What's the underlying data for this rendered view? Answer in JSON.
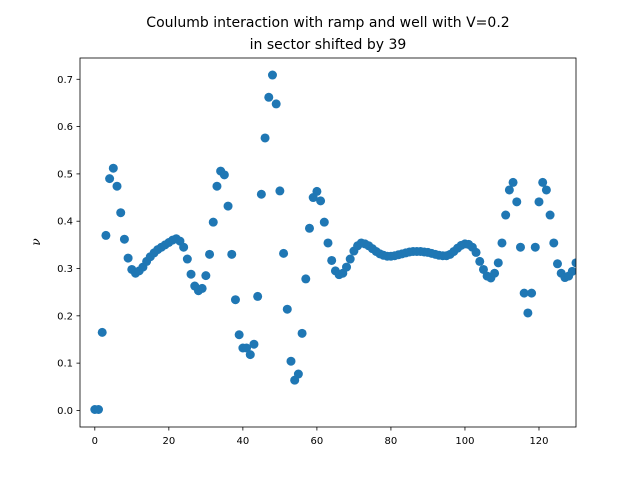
{
  "chart_data": {
    "type": "scatter",
    "title_lines": [
      "Coulumb interaction with ramp and well with V=0.2",
      "in sector shifted by 39"
    ],
    "xlabel": "",
    "ylabel": "ν",
    "xlim": [
      -4,
      130
    ],
    "ylim": [
      -0.035,
      0.745
    ],
    "xticks": [
      0,
      20,
      40,
      60,
      80,
      100,
      120
    ],
    "yticks": [
      0.0,
      0.1,
      0.2,
      0.3,
      0.4,
      0.5,
      0.6,
      0.7
    ],
    "ytick_labels": [
      "0.0",
      "0.1",
      "0.2",
      "0.3",
      "0.4",
      "0.5",
      "0.6",
      "0.7"
    ],
    "marker_color": "#1f77b4",
    "grid": false,
    "x": [
      0,
      1,
      2,
      3,
      4,
      5,
      6,
      7,
      8,
      9,
      10,
      11,
      12,
      13,
      14,
      15,
      16,
      17,
      18,
      19,
      20,
      21,
      22,
      23,
      24,
      25,
      26,
      27,
      28,
      29,
      30,
      31,
      32,
      33,
      34,
      35,
      36,
      37,
      38,
      39,
      40,
      41,
      42,
      43,
      44,
      45,
      46,
      47,
      48,
      49,
      50,
      51,
      52,
      53,
      54,
      55,
      56,
      57,
      58,
      59,
      60,
      61,
      62,
      63,
      64,
      65,
      66,
      67,
      68,
      69,
      70,
      71,
      72,
      73,
      74,
      75,
      76,
      77,
      78,
      79,
      80,
      81,
      82,
      83,
      84,
      85,
      86,
      87,
      88,
      89,
      90,
      91,
      92,
      93,
      94,
      95,
      96,
      97,
      98,
      99,
      100,
      101,
      102,
      103,
      104,
      105,
      106,
      107,
      108,
      109,
      110,
      111,
      112,
      113,
      114,
      115,
      116,
      117,
      118,
      119,
      120,
      121,
      122,
      123,
      124,
      125,
      126,
      127,
      128,
      129,
      130
    ],
    "y": [
      0.002,
      0.002,
      0.165,
      0.37,
      0.49,
      0.512,
      0.474,
      0.418,
      0.362,
      0.322,
      0.298,
      0.29,
      0.295,
      0.303,
      0.315,
      0.325,
      0.333,
      0.34,
      0.345,
      0.35,
      0.355,
      0.36,
      0.363,
      0.358,
      0.345,
      0.32,
      0.288,
      0.263,
      0.253,
      0.258,
      0.285,
      0.33,
      0.398,
      0.474,
      0.506,
      0.498,
      0.432,
      0.33,
      0.234,
      0.16,
      0.132,
      0.132,
      0.118,
      0.14,
      0.241,
      0.457,
      0.576,
      0.662,
      0.709,
      0.648,
      0.464,
      0.332,
      0.214,
      0.104,
      0.064,
      0.077,
      0.163,
      0.278,
      0.385,
      0.45,
      0.463,
      0.443,
      0.398,
      0.354,
      0.317,
      0.295,
      0.287,
      0.29,
      0.303,
      0.32,
      0.337,
      0.348,
      0.354,
      0.352,
      0.348,
      0.342,
      0.336,
      0.331,
      0.328,
      0.326,
      0.326,
      0.327,
      0.329,
      0.331,
      0.333,
      0.335,
      0.336,
      0.336,
      0.336,
      0.335,
      0.334,
      0.332,
      0.33,
      0.328,
      0.327,
      0.327,
      0.33,
      0.336,
      0.343,
      0.349,
      0.352,
      0.351,
      0.345,
      0.334,
      0.315,
      0.298,
      0.284,
      0.28,
      0.29,
      0.312,
      0.354,
      0.413,
      0.466,
      0.482,
      0.441,
      0.345,
      0.248,
      0.206,
      0.248,
      0.345,
      0.441,
      0.482,
      0.466,
      0.413,
      0.354,
      0.31,
      0.29,
      0.281,
      0.284,
      0.294,
      0.312
    ]
  }
}
